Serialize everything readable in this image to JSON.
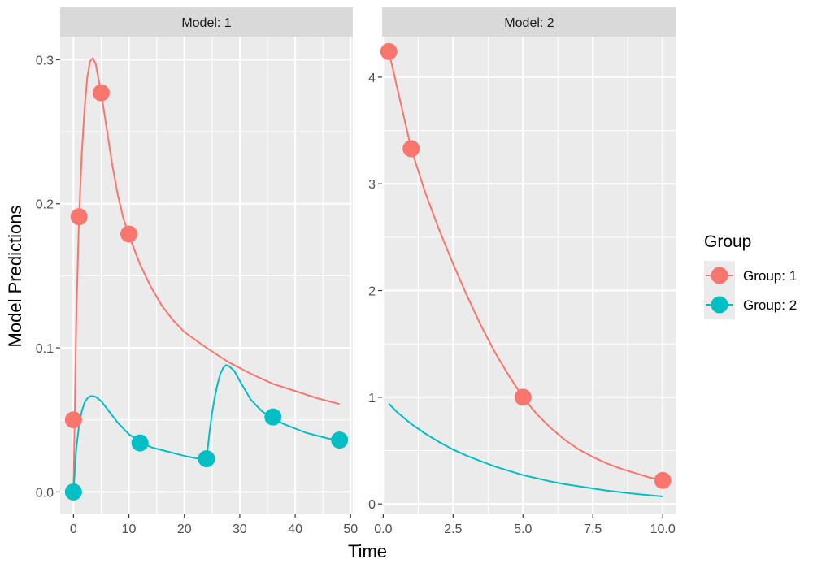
{
  "chart_data": {
    "type": "line",
    "xlabel": "Time",
    "ylabel": "Model Predictions",
    "legend": {
      "title": "Group",
      "placement": "right",
      "entries": [
        {
          "label": "Group: 1",
          "color": "#F8766D"
        },
        {
          "label": "Group: 2",
          "color": "#00BFC4"
        }
      ]
    },
    "panels": [
      {
        "strip": "Model: 1",
        "xlim": [
          -2.4,
          50.4
        ],
        "ylim": [
          -0.015,
          0.316
        ],
        "xticks": [
          0,
          10,
          20,
          30,
          40,
          50
        ],
        "xtick_labels": [
          "0",
          "10",
          "20",
          "30",
          "40",
          "50"
        ],
        "yticks": [
          0.0,
          0.1,
          0.2,
          0.3
        ],
        "ytick_labels": [
          "0.0",
          "0.1",
          "0.2",
          "0.3"
        ],
        "series": [
          {
            "group": "Group: 1",
            "color": "#F8766D",
            "line": [
              [
                0,
                0
              ],
              [
                0.5,
                0.12
              ],
              [
                1,
                0.19
              ],
              [
                1.5,
                0.235
              ],
              [
                2,
                0.266
              ],
              [
                2.5,
                0.288
              ],
              [
                3,
                0.299
              ],
              [
                3.5,
                0.301
              ],
              [
                4,
                0.297
              ],
              [
                5,
                0.277
              ],
              [
                6,
                0.252
              ],
              [
                7,
                0.227
              ],
              [
                8,
                0.206
              ],
              [
                9,
                0.19
              ],
              [
                10,
                0.178
              ],
              [
                11,
                0.168
              ],
              [
                12,
                0.158
              ],
              [
                14,
                0.142
              ],
              [
                16,
                0.129
              ],
              [
                18,
                0.119
              ],
              [
                20,
                0.111
              ],
              [
                24,
                0.1
              ],
              [
                28,
                0.09
              ],
              [
                32,
                0.082
              ],
              [
                36,
                0.075
              ],
              [
                40,
                0.07
              ],
              [
                44,
                0.065
              ],
              [
                48,
                0.061
              ]
            ],
            "points": [
              [
                0,
                0.05
              ],
              [
                1,
                0.191
              ],
              [
                5,
                0.277
              ],
              [
                10,
                0.179
              ]
            ]
          },
          {
            "group": "Group: 2",
            "color": "#00BFC4",
            "line": [
              [
                0,
                0
              ],
              [
                0.5,
                0.03
              ],
              [
                1,
                0.046
              ],
              [
                1.5,
                0.056
              ],
              [
                2,
                0.062
              ],
              [
                2.5,
                0.065
              ],
              [
                3,
                0.0665
              ],
              [
                3.5,
                0.0665
              ],
              [
                4,
                0.066
              ],
              [
                5,
                0.063
              ],
              [
                6,
                0.058
              ],
              [
                8,
                0.048
              ],
              [
                10,
                0.04
              ],
              [
                12,
                0.035
              ],
              [
                14,
                0.031
              ],
              [
                16,
                0.029
              ],
              [
                18,
                0.027
              ],
              [
                20,
                0.025
              ],
              [
                22,
                0.0235
              ],
              [
                24,
                0.0225
              ],
              [
                24.5,
                0.04
              ],
              [
                25,
                0.055
              ],
              [
                25.5,
                0.066
              ],
              [
                26,
                0.075
              ],
              [
                26.5,
                0.082
              ],
              [
                27,
                0.086
              ],
              [
                27.5,
                0.088
              ],
              [
                28,
                0.0875
              ],
              [
                29,
                0.084
              ],
              [
                30,
                0.077
              ],
              [
                32,
                0.064
              ],
              [
                34,
                0.056
              ],
              [
                36,
                0.051
              ],
              [
                38,
                0.047
              ],
              [
                40,
                0.044
              ],
              [
                42,
                0.041
              ],
              [
                44,
                0.039
              ],
              [
                46,
                0.037
              ],
              [
                48,
                0.036
              ]
            ],
            "points": [
              [
                0,
                0.0
              ],
              [
                12,
                0.034
              ],
              [
                24,
                0.023
              ],
              [
                36,
                0.052
              ],
              [
                48,
                0.036
              ]
            ]
          }
        ]
      },
      {
        "strip": "Model: 2",
        "xlim": [
          -0.04,
          10.49
        ],
        "ylim": [
          -0.09,
          4.38
        ],
        "xticks": [
          0,
          2.5,
          5,
          7.5,
          10
        ],
        "xtick_labels": [
          "0.0",
          "2.5",
          "5.0",
          "7.5",
          "10.0"
        ],
        "yticks": [
          0,
          1,
          2,
          3,
          4
        ],
        "ytick_labels": [
          "0",
          "1",
          "2",
          "3",
          "4"
        ],
        "series": [
          {
            "group": "Group: 1",
            "color": "#F8766D",
            "line": [
              [
                0.2,
                4.24
              ],
              [
                0.5,
                3.9
              ],
              [
                1,
                3.33
              ],
              [
                1.5,
                2.92
              ],
              [
                2,
                2.57
              ],
              [
                2.5,
                2.25
              ],
              [
                3,
                1.95
              ],
              [
                3.5,
                1.67
              ],
              [
                4,
                1.42
              ],
              [
                4.5,
                1.2
              ],
              [
                5,
                1.0
              ],
              [
                5.5,
                0.84
              ],
              [
                6,
                0.71
              ],
              [
                6.5,
                0.6
              ],
              [
                7,
                0.51
              ],
              [
                7.5,
                0.44
              ],
              [
                8,
                0.38
              ],
              [
                8.5,
                0.33
              ],
              [
                9,
                0.29
              ],
              [
                9.5,
                0.25
              ],
              [
                10,
                0.22
              ]
            ],
            "points": [
              [
                0.2,
                4.24
              ],
              [
                1,
                3.33
              ],
              [
                5,
                1.0
              ],
              [
                10,
                0.22
              ]
            ]
          },
          {
            "group": "Group: 2",
            "color": "#00BFC4",
            "line": [
              [
                0.2,
                0.94
              ],
              [
                0.5,
                0.86
              ],
              [
                1,
                0.75
              ],
              [
                1.5,
                0.66
              ],
              [
                2,
                0.58
              ],
              [
                2.5,
                0.51
              ],
              [
                3,
                0.45
              ],
              [
                3.5,
                0.4
              ],
              [
                4,
                0.35
              ],
              [
                4.5,
                0.31
              ],
              [
                5,
                0.27
              ],
              [
                5.5,
                0.24
              ],
              [
                6,
                0.21
              ],
              [
                6.5,
                0.185
              ],
              [
                7,
                0.165
              ],
              [
                7.5,
                0.145
              ],
              [
                8,
                0.125
              ],
              [
                8.5,
                0.11
              ],
              [
                9,
                0.095
              ],
              [
                9.5,
                0.082
              ],
              [
                10,
                0.07
              ]
            ],
            "points": []
          }
        ]
      }
    ]
  }
}
